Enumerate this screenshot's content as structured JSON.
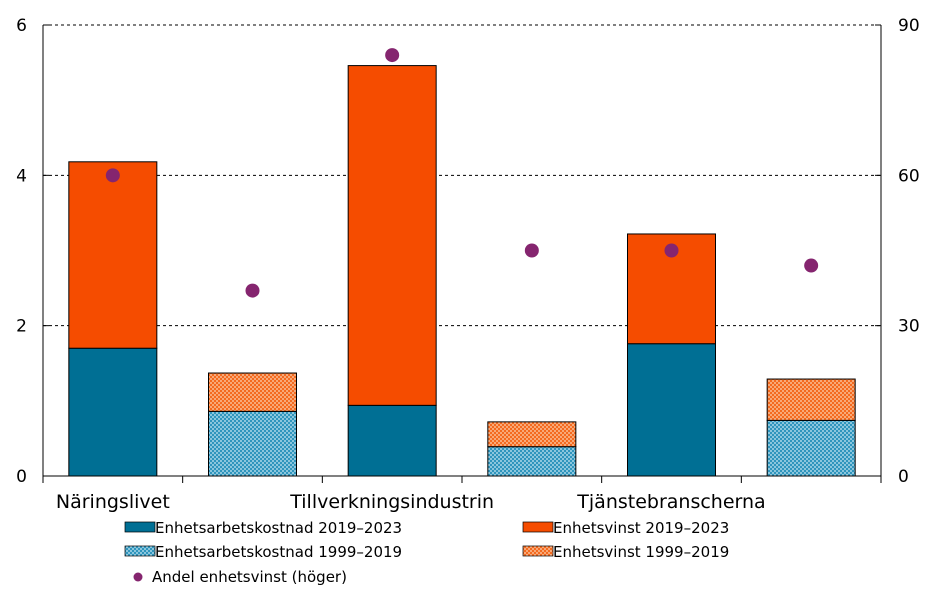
{
  "chart_data": {
    "type": "bar",
    "stacked": true,
    "groups": [
      "Näringslivet",
      "Tillverkningsindustrin",
      "Tjänstebranscherna"
    ],
    "bars": [
      {
        "group": 0,
        "period": "2019–2023",
        "arbetskostnad": 1.7,
        "vinst": 2.48,
        "andel": 60
      },
      {
        "group": 0,
        "period": "1999–2019",
        "arbetskostnad": 0.86,
        "vinst": 0.51,
        "andel": 37
      },
      {
        "group": 1,
        "period": "2019–2023",
        "arbetskostnad": 0.94,
        "vinst": 4.52,
        "andel": 84
      },
      {
        "group": 1,
        "period": "1999–2019",
        "arbetskostnad": 0.39,
        "vinst": 0.33,
        "andel": 45
      },
      {
        "group": 2,
        "period": "2019–2023",
        "arbetskostnad": 1.76,
        "vinst": 1.46,
        "andel": 45
      },
      {
        "group": 2,
        "period": "1999–2019",
        "arbetskostnad": 0.74,
        "vinst": 0.55,
        "andel": 42
      }
    ],
    "y_left": {
      "min": 0,
      "max": 6,
      "ticks": [
        0,
        2,
        4,
        6
      ]
    },
    "y_right": {
      "min": 0,
      "max": 90,
      "ticks": [
        0,
        30,
        60,
        90
      ]
    },
    "grid": "dashed-horizontal",
    "colors": {
      "arbetskostnad_2019": "#006f94",
      "vinst_2019": "#f54c00",
      "arbetskostnad_1999": "#6fb3cf",
      "vinst_1999": "#f7965a",
      "andel": "#85256f"
    },
    "legend": [
      {
        "key": "arbetskostnad_2019",
        "label": "Enhetsarbetskostnad 2019–2023",
        "style": "solid"
      },
      {
        "key": "vinst_2019",
        "label": "Enhetsvinst 2019–2023",
        "style": "solid"
      },
      {
        "key": "arbetskostnad_1999",
        "label": "Enhetsarbetskostnad 1999–2019",
        "style": "dotted"
      },
      {
        "key": "vinst_1999",
        "label": "Enhetsvinst 1999–2019",
        "style": "dotted"
      },
      {
        "key": "andel",
        "label": "Andel enhetsvinst (höger)",
        "style": "dot"
      }
    ]
  }
}
